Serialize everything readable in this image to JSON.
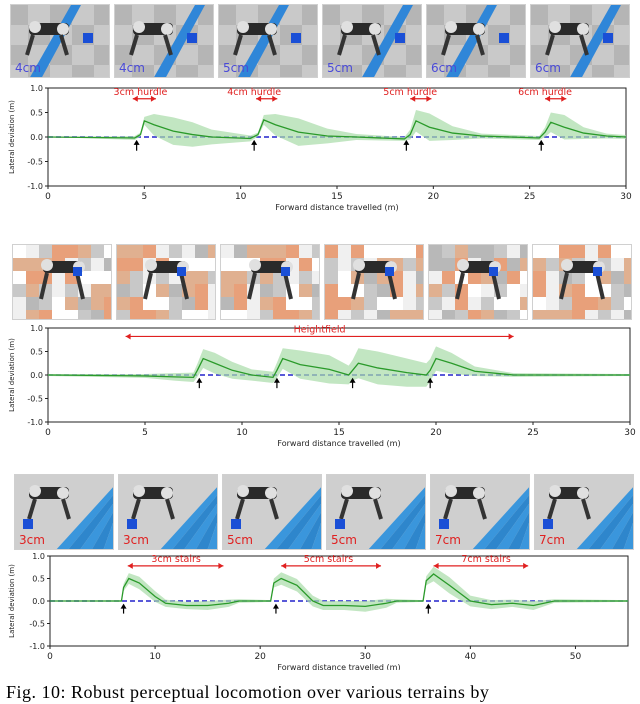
{
  "panels": [
    {
      "thumbnails": [
        {
          "label": "4cm",
          "label_color": "#4a4ad8",
          "terrain": "hurdle"
        },
        {
          "label": "4cm",
          "label_color": "#4a4ad8",
          "terrain": "hurdle"
        },
        {
          "label": "5cm",
          "label_color": "#4a4ad8",
          "terrain": "hurdle"
        },
        {
          "label": "5cm",
          "label_color": "#4a4ad8",
          "terrain": "hurdle"
        },
        {
          "label": "6cm",
          "label_color": "#4a4ad8",
          "terrain": "hurdle"
        },
        {
          "label": "6cm",
          "label_color": "#4a4ad8",
          "terrain": "hurdle"
        }
      ]
    },
    {
      "thumbnails": [
        {
          "label": "",
          "label_color": "#4a4ad8",
          "terrain": "heightfield"
        },
        {
          "label": "",
          "label_color": "#4a4ad8",
          "terrain": "heightfield"
        },
        {
          "label": "",
          "label_color": "#4a4ad8",
          "terrain": "heightfield"
        },
        {
          "label": "",
          "label_color": "#4a4ad8",
          "terrain": "heightfield"
        },
        {
          "label": "",
          "label_color": "#4a4ad8",
          "terrain": "heightfield"
        },
        {
          "label": "",
          "label_color": "#4a4ad8",
          "terrain": "heightfield"
        }
      ]
    },
    {
      "thumbnails": [
        {
          "label": "3cm",
          "label_color": "#e02020",
          "terrain": "stairs"
        },
        {
          "label": "3cm",
          "label_color": "#e02020",
          "terrain": "stairs"
        },
        {
          "label": "5cm",
          "label_color": "#e02020",
          "terrain": "stairs"
        },
        {
          "label": "5cm",
          "label_color": "#e02020",
          "terrain": "stairs"
        },
        {
          "label": "7cm",
          "label_color": "#e02020",
          "terrain": "stairs"
        },
        {
          "label": "7cm",
          "label_color": "#e02020",
          "terrain": "stairs"
        }
      ]
    }
  ],
  "chart_data": [
    {
      "type": "line",
      "xlabel": "Forward distance travelled (m)",
      "ylabel": "Lateral deviation (m)",
      "xlim": [
        0,
        30
      ],
      "ylim": [
        -1.0,
        1.0
      ],
      "xticks": [
        "0",
        "5",
        "10",
        "15",
        "20",
        "25",
        "30"
      ],
      "yticks": [
        "1.0",
        "0.5",
        "0.0",
        "-0.5",
        "-1.0"
      ],
      "reference": {
        "y": 0.0,
        "style": "dashed",
        "color": "#2222cc"
      },
      "series": [
        {
          "color": "#2a9a2a",
          "band_color": "#a8dca8",
          "points": [
            [
              0,
              0.0
            ],
            [
              4.5,
              -0.02
            ],
            [
              4.8,
              0.05
            ],
            [
              5.0,
              0.33
            ],
            [
              5.5,
              0.25
            ],
            [
              6.5,
              0.12
            ],
            [
              7.5,
              0.05
            ],
            [
              8.5,
              0.0
            ],
            [
              10.5,
              -0.03
            ],
            [
              10.9,
              0.05
            ],
            [
              11.2,
              0.35
            ],
            [
              11.8,
              0.25
            ],
            [
              13,
              0.1
            ],
            [
              14.5,
              0.02
            ],
            [
              16,
              0.0
            ],
            [
              18.5,
              -0.04
            ],
            [
              18.8,
              0.05
            ],
            [
              19.1,
              0.33
            ],
            [
              19.8,
              0.2
            ],
            [
              21,
              0.08
            ],
            [
              22.5,
              0.02
            ],
            [
              25.5,
              -0.02
            ],
            [
              25.8,
              0.1
            ],
            [
              26.1,
              0.3
            ],
            [
              26.8,
              0.2
            ],
            [
              27.8,
              0.08
            ],
            [
              29,
              0.02
            ],
            [
              30,
              0.0
            ]
          ],
          "band": [
            0,
            0.04,
            0.04,
            0.08,
            0.22,
            0.28,
            0.25,
            0.15,
            0.06,
            0.04,
            0.1,
            0.22,
            0.28,
            0.15,
            0.06,
            0.04,
            0.1,
            0.22,
            0.28,
            0.14,
            0.05,
            0.04,
            0.1,
            0.2,
            0.25,
            0.12,
            0.05,
            0.04
          ]
        }
      ],
      "arrows_x": [
        4.6,
        10.7,
        18.6,
        25.6
      ],
      "annotations": [
        {
          "text": "3cm hurdle",
          "x1": 4.4,
          "x2": 5.6,
          "tx": 4.8,
          "y": 0.78
        },
        {
          "text": "4cm hurdle",
          "x1": 10.8,
          "x2": 11.9,
          "tx": 10.7,
          "y": 0.78
        },
        {
          "text": "5cm hurdle",
          "x1": 18.8,
          "x2": 19.9,
          "tx": 18.8,
          "y": 0.78
        },
        {
          "text": "6cm hurdle",
          "x1": 25.8,
          "x2": 26.9,
          "tx": 25.8,
          "y": 0.78
        }
      ]
    },
    {
      "type": "line",
      "xlabel": "Forward distance travelled (m)",
      "ylabel": "Lateral deviation (m)",
      "xlim": [
        0,
        30
      ],
      "ylim": [
        -1.0,
        1.0
      ],
      "xticks": [
        "0",
        "5",
        "10",
        "15",
        "20",
        "25",
        "30"
      ],
      "yticks": [
        "1.0",
        "0.5",
        "0.0",
        "-0.5",
        "-1.0"
      ],
      "reference": {
        "y": 0.0,
        "style": "dashed",
        "color": "#2222cc"
      },
      "series": [
        {
          "color": "#2a9a2a",
          "band_color": "#a8dca8",
          "points": [
            [
              0,
              0.0
            ],
            [
              5,
              -0.02
            ],
            [
              6.5,
              -0.04
            ],
            [
              7.5,
              -0.05
            ],
            [
              7.7,
              0.1
            ],
            [
              8.0,
              0.35
            ],
            [
              8.6,
              0.25
            ],
            [
              9.5,
              0.1
            ],
            [
              10.5,
              0.0
            ],
            [
              11.6,
              -0.05
            ],
            [
              11.8,
              0.1
            ],
            [
              12.1,
              0.35
            ],
            [
              13,
              0.22
            ],
            [
              14.5,
              0.12
            ],
            [
              15.5,
              0.0
            ],
            [
              15.7,
              0.1
            ],
            [
              16.0,
              0.25
            ],
            [
              17,
              0.15
            ],
            [
              18.5,
              0.05
            ],
            [
              19.5,
              0.0
            ],
            [
              19.7,
              0.1
            ],
            [
              20.0,
              0.35
            ],
            [
              20.8,
              0.25
            ],
            [
              22,
              0.08
            ],
            [
              24,
              0.0
            ],
            [
              30,
              0.0
            ]
          ],
          "band": [
            0.02,
            0.04,
            0.08,
            0.1,
            0.14,
            0.2,
            0.22,
            0.18,
            0.12,
            0.12,
            0.16,
            0.22,
            0.3,
            0.3,
            0.2,
            0.22,
            0.32,
            0.35,
            0.3,
            0.25,
            0.24,
            0.26,
            0.22,
            0.1,
            0.04,
            0.02
          ]
        }
      ],
      "arrows_x": [
        7.8,
        11.8,
        15.7,
        19.7
      ],
      "annotations": [
        {
          "text": "Heightfield",
          "x1": 4.0,
          "x2": 24.0,
          "tx": 14.0,
          "y": 0.82
        }
      ]
    },
    {
      "type": "line",
      "xlabel": "Forward distance travelled (m)",
      "ylabel": "Lateral deviation (m)",
      "xlim": [
        0,
        55
      ],
      "ylim": [
        -1.0,
        1.0
      ],
      "xticks": [
        "0",
        "10",
        "20",
        "30",
        "40",
        "50"
      ],
      "yticks": [
        "1.0",
        "0.5",
        "0.0",
        "-0.5",
        "-1.0"
      ],
      "reference": {
        "y": 0.0,
        "style": "dashed",
        "color": "#2222cc"
      },
      "series": [
        {
          "color": "#2a9a2a",
          "band_color": "#a8dca8",
          "points": [
            [
              0,
              0.0
            ],
            [
              6.8,
              0.0
            ],
            [
              7.0,
              0.3
            ],
            [
              7.5,
              0.5
            ],
            [
              8.5,
              0.4
            ],
            [
              10,
              0.1
            ],
            [
              11,
              -0.05
            ],
            [
              13,
              -0.1
            ],
            [
              15,
              -0.1
            ],
            [
              17,
              -0.05
            ],
            [
              18,
              0.0
            ],
            [
              21.0,
              0.0
            ],
            [
              21.3,
              0.4
            ],
            [
              22,
              0.5
            ],
            [
              23.5,
              0.35
            ],
            [
              25,
              0.0
            ],
            [
              26,
              -0.1
            ],
            [
              28,
              -0.1
            ],
            [
              30,
              -0.12
            ],
            [
              32,
              -0.05
            ],
            [
              33,
              0.0
            ],
            [
              35.5,
              0.0
            ],
            [
              35.8,
              0.45
            ],
            [
              36.5,
              0.6
            ],
            [
              38,
              0.35
            ],
            [
              40,
              0.0
            ],
            [
              42,
              -0.08
            ],
            [
              44,
              -0.05
            ],
            [
              46,
              -0.1
            ],
            [
              48,
              0.0
            ],
            [
              55,
              0.0
            ]
          ],
          "band": [
            0,
            0.02,
            0.08,
            0.12,
            0.14,
            0.12,
            0.08,
            0.08,
            0.1,
            0.08,
            0.04,
            0.02,
            0.1,
            0.14,
            0.14,
            0.12,
            0.1,
            0.1,
            0.12,
            0.1,
            0.04,
            0.02,
            0.1,
            0.16,
            0.18,
            0.12,
            0.1,
            0.08,
            0.1,
            0.04,
            0.02
          ]
        }
      ],
      "arrows_x": [
        7.0,
        21.5,
        36.0
      ],
      "annotations": [
        {
          "text": "3cm stairs",
          "x1": 7.4,
          "x2": 16.5,
          "tx": 12.0,
          "y": 0.78
        },
        {
          "text": "5cm stairs",
          "x1": 22.0,
          "x2": 31.5,
          "tx": 26.5,
          "y": 0.78
        },
        {
          "text": "7cm stairs",
          "x1": 36.5,
          "x2": 45.5,
          "tx": 41.5,
          "y": 0.78
        }
      ]
    }
  ],
  "caption": "Fig. 10: Robust perceptual locomotion over various terrains by"
}
